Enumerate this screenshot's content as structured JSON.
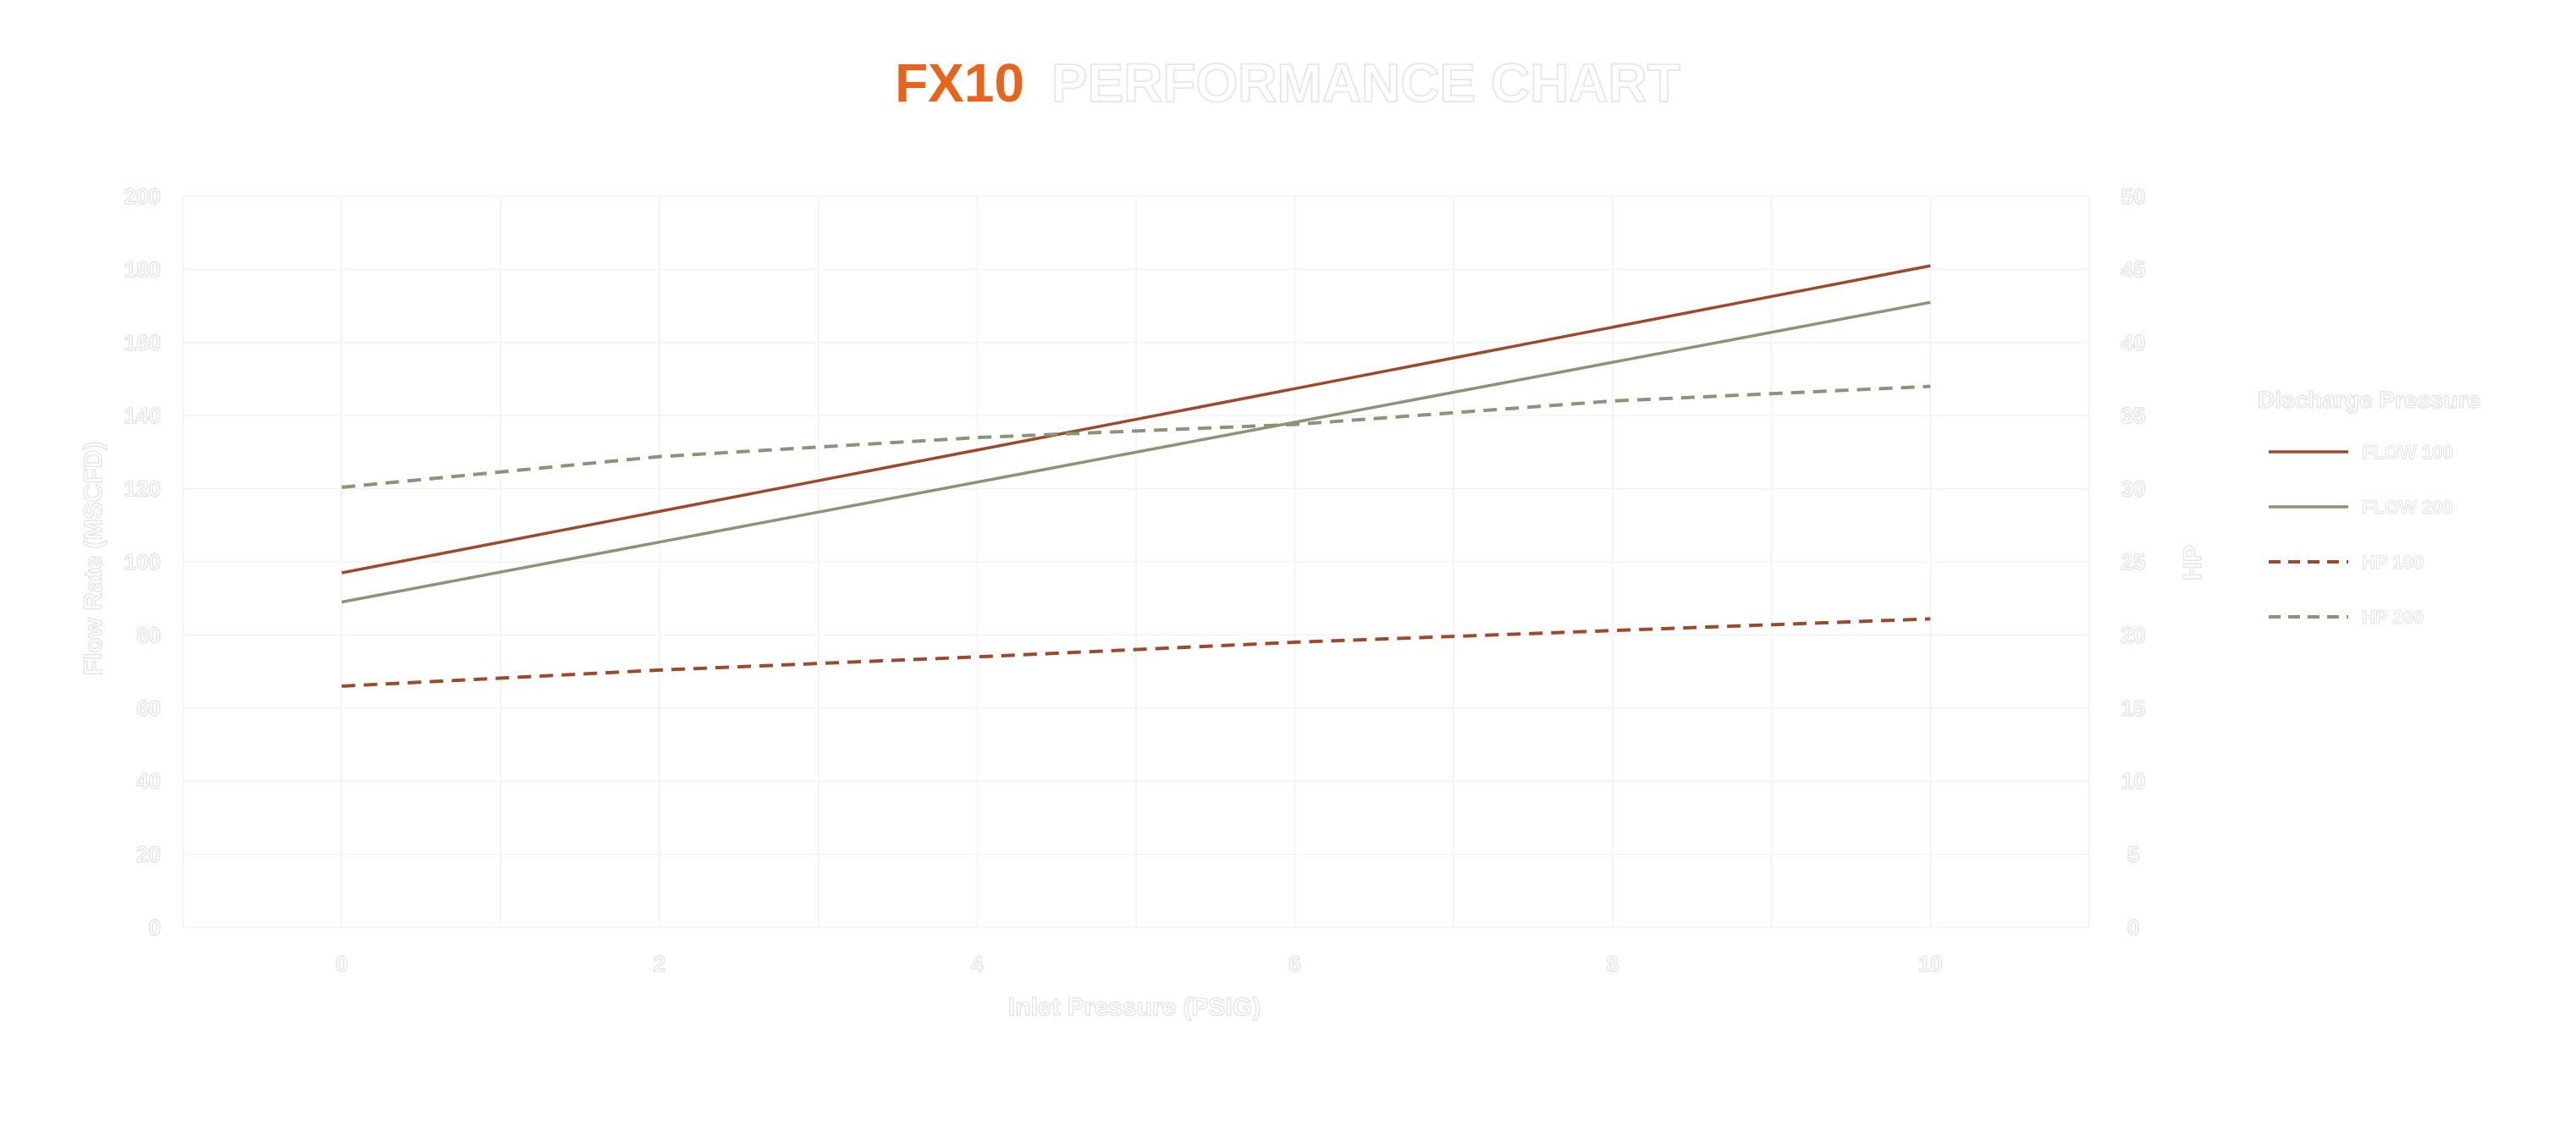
{
  "chart_data": {
    "type": "line",
    "title_accent": "FX10",
    "title_main": "PERFORMANCE CHART",
    "xlabel": "Inlet Pressure (PSIG)",
    "ylabel": "Flow Rate (MSCFD)",
    "y2label": "HP",
    "xlim": [
      -1,
      11
    ],
    "ylim": [
      0,
      200
    ],
    "y2lim": [
      0,
      50
    ],
    "x_ticks": [
      0,
      2,
      4,
      6,
      8,
      10
    ],
    "y_ticks": [
      0,
      20,
      40,
      60,
      80,
      100,
      120,
      140,
      160,
      180,
      200
    ],
    "y2_ticks": [
      0,
      5,
      10,
      15,
      20,
      25,
      30,
      35,
      40,
      45,
      50
    ],
    "grid": true,
    "legend_title": "Discharge Pressure",
    "legend_position": "right",
    "series": [
      {
        "name": "FLOW 100",
        "axis": "left",
        "style": "solid",
        "color": "#9c4a2c",
        "x": [
          0,
          10
        ],
        "y": [
          97,
          181
        ]
      },
      {
        "name": "FLOW 200",
        "axis": "left",
        "style": "solid",
        "color": "#8a9476",
        "x": [
          0,
          10
        ],
        "y": [
          89,
          171
        ]
      },
      {
        "name": "HP 100",
        "axis": "right",
        "style": "dashed",
        "color": "#9c4a2c",
        "x": [
          0,
          2,
          4,
          6,
          8,
          10
        ],
        "y": [
          16.5,
          17.6,
          18.5,
          19.5,
          20.3,
          21.1
        ]
      },
      {
        "name": "HP 200",
        "axis": "right",
        "style": "dashed",
        "color": "#8a9476",
        "x": [
          0,
          2,
          4,
          6,
          8,
          10
        ],
        "y": [
          30.1,
          32.2,
          33.5,
          34.4,
          36.0,
          37.0
        ]
      }
    ]
  }
}
